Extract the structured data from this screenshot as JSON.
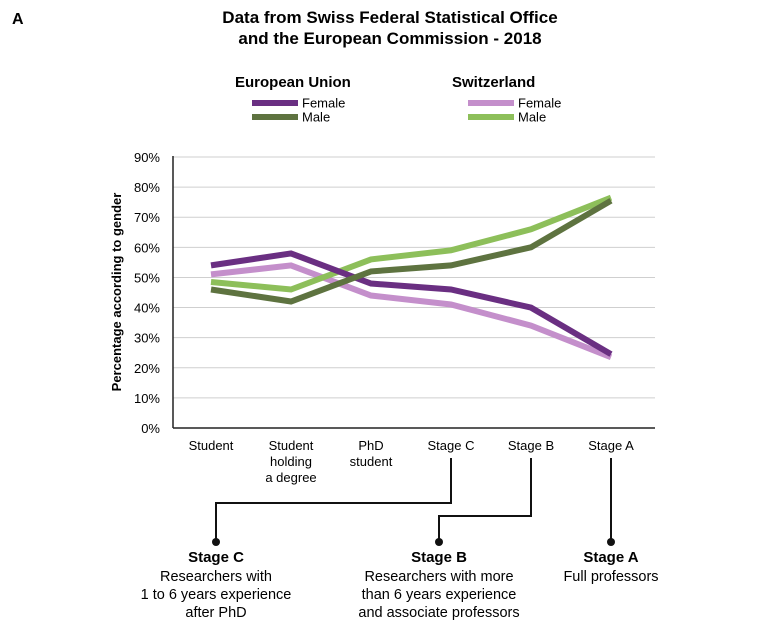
{
  "panel_label": "A",
  "chart_data": {
    "type": "line",
    "title_lines": [
      "Data from Swiss Federal Statistical Office",
      "and the European Commission - 2018"
    ],
    "ylabel": "Percentage according to gender",
    "ylim": [
      0,
      90
    ],
    "y_ticks": [
      "0%",
      "10%",
      "20%",
      "30%",
      "40%",
      "50%",
      "60%",
      "70%",
      "80%",
      "90%"
    ],
    "y_tick_values": [
      0,
      10,
      20,
      30,
      40,
      50,
      60,
      70,
      80,
      90
    ],
    "categories": [
      [
        "Student"
      ],
      [
        "Student",
        "holding",
        "a degree"
      ],
      [
        "PhD",
        "student"
      ],
      [
        "Stage C"
      ],
      [
        "Stage B"
      ],
      [
        "Stage A"
      ]
    ],
    "legend_groups": [
      {
        "name": "European Union",
        "entries": [
          "Female",
          "Male"
        ]
      },
      {
        "name": "Switzerland",
        "entries": [
          "Female",
          "Male"
        ]
      }
    ],
    "series": [
      {
        "name": "Switzerland Female",
        "color": "#c48fcb",
        "values": [
          51,
          54,
          44,
          41,
          34,
          23.5
        ]
      },
      {
        "name": "Switzerland Male",
        "color": "#8dbf5a",
        "values": [
          48.5,
          46,
          56,
          59,
          66,
          76.5
        ]
      },
      {
        "name": "European Union Female",
        "color": "#6a2f82",
        "values": [
          54,
          58,
          48,
          46,
          40,
          24.5
        ]
      },
      {
        "name": "European Union Male",
        "color": "#5e7340",
        "values": [
          46,
          42,
          52,
          54,
          60,
          75.5
        ]
      }
    ],
    "annotations": [
      {
        "title": "Stage C",
        "lines": [
          "Researchers with",
          "1 to 6 years experience",
          "after PhD"
        ]
      },
      {
        "title": "Stage B",
        "lines": [
          "Researchers with more",
          "than 6 years experience",
          "and associate professors"
        ]
      },
      {
        "title": "Stage A",
        "lines": [
          "Full professors"
        ]
      }
    ]
  }
}
